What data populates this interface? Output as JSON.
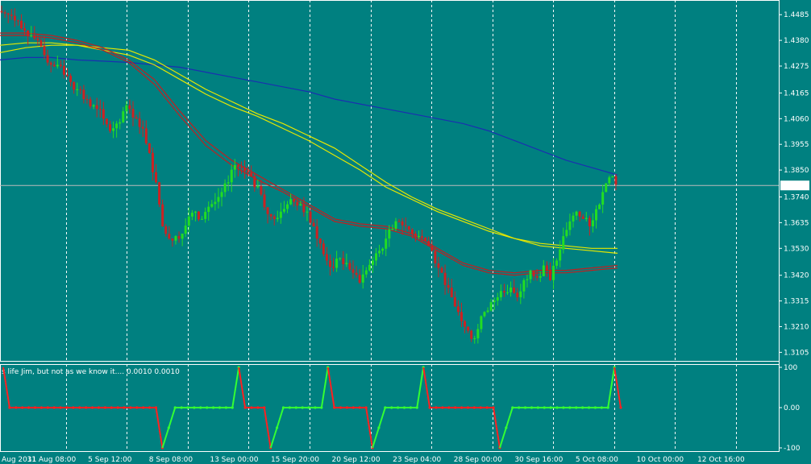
{
  "colors": {
    "background": "#008080",
    "bull_candle": "#22dd22",
    "bear_candle": "#cc2222",
    "grid": "#ffffff",
    "ma_blue": "#1a2fb0",
    "ma_yellow": "#e8e800",
    "ma_red": "#c02020",
    "ind_red": "#ff2020",
    "ind_green": "#33ff33"
  },
  "chart_data": [
    {
      "type": "candlestick",
      "symbol": "",
      "price_ticks": [
        "1.4485",
        "1.4380",
        "1.4275",
        "1.4165",
        "1.4060",
        "1.3955",
        "1.3850",
        "1.3740",
        "1.3635",
        "1.3530",
        "1.3420",
        "1.3315",
        "1.3210",
        "1.3105"
      ],
      "current_price": "1.3787",
      "ylim": [
        1.307,
        1.4545
      ],
      "time_labels": [
        "Aug 2011",
        "31 Aug 08:00",
        "5 Sep 12:00",
        "8 Sep 08:00",
        "13 Sep 00:00",
        "15 Sep 20:00",
        "20 Sep 12:00",
        "23 Sep 04:00",
        "28 Sep 00:00",
        "30 Sep 16:00",
        "5 Oct 08:00",
        "10 Oct 00:00",
        "12 Oct 16:00"
      ],
      "close_path": [
        1.449,
        1.448,
        1.446,
        1.442,
        1.44,
        1.438,
        1.432,
        1.428,
        1.428,
        1.424,
        1.421,
        1.418,
        1.414,
        1.411,
        1.41,
        1.406,
        1.401,
        1.404,
        1.409,
        1.41,
        1.406,
        1.402,
        1.392,
        1.38,
        1.362,
        1.357,
        1.358,
        1.359,
        1.366,
        1.368,
        1.365,
        1.37,
        1.372,
        1.376,
        1.38,
        1.387,
        1.386,
        1.384,
        1.378,
        1.375,
        1.367,
        1.365,
        1.368,
        1.371,
        1.372,
        1.371,
        1.368,
        1.362,
        1.355,
        1.348,
        1.345,
        1.349,
        1.347,
        1.343,
        1.339,
        1.344,
        1.348,
        1.352,
        1.357,
        1.361,
        1.364,
        1.362,
        1.359,
        1.358,
        1.356,
        1.352,
        1.345,
        1.338,
        1.333,
        1.327,
        1.321,
        1.316,
        1.32,
        1.327,
        1.331,
        1.333,
        1.335,
        1.337,
        1.333,
        1.34,
        1.344,
        1.341,
        1.346,
        1.34,
        1.348,
        1.358,
        1.364,
        1.368,
        1.365,
        1.362,
        1.369,
        1.376,
        1.382,
        1.379
      ],
      "moving_averages": [
        {
          "color_key": "ma_blue",
          "values": [
            1.43,
            1.431,
            1.431,
            1.43,
            1.4295,
            1.429,
            1.428,
            1.427,
            1.425,
            1.423,
            1.421,
            1.419,
            1.417,
            1.414,
            1.412,
            1.41,
            1.408,
            1.406,
            1.404,
            1.401,
            1.397,
            1.393,
            1.389,
            1.386,
            1.383
          ]
        },
        {
          "color_key": "ma_yellow",
          "values": [
            1.433,
            1.435,
            1.436,
            1.436,
            1.435,
            1.434,
            1.43,
            1.424,
            1.418,
            1.413,
            1.408,
            1.404,
            1.399,
            1.394,
            1.387,
            1.38,
            1.374,
            1.369,
            1.365,
            1.361,
            1.357,
            1.354,
            1.353,
            1.352,
            1.351
          ]
        },
        {
          "color_key": "ma_yellow",
          "values": [
            1.436,
            1.437,
            1.437,
            1.436,
            1.434,
            1.432,
            1.428,
            1.422,
            1.416,
            1.411,
            1.407,
            1.402,
            1.397,
            1.391,
            1.385,
            1.378,
            1.373,
            1.368,
            1.364,
            1.36,
            1.357,
            1.355,
            1.354,
            1.353,
            1.353
          ]
        },
        {
          "color_key": "ma_red",
          "values": [
            1.44,
            1.44,
            1.439,
            1.437,
            1.434,
            1.429,
            1.42,
            1.407,
            1.395,
            1.387,
            1.381,
            1.376,
            1.37,
            1.364,
            1.362,
            1.361,
            1.358,
            1.352,
            1.346,
            1.343,
            1.342,
            1.343,
            1.343,
            1.344,
            1.345
          ]
        },
        {
          "color_key": "ma_red",
          "values": [
            1.441,
            1.441,
            1.44,
            1.438,
            1.435,
            1.43,
            1.422,
            1.409,
            1.397,
            1.389,
            1.383,
            1.377,
            1.371,
            1.365,
            1.363,
            1.362,
            1.359,
            1.353,
            1.347,
            1.344,
            1.343,
            1.344,
            1.344,
            1.345,
            1.346
          ]
        }
      ]
    },
    {
      "type": "line",
      "indicator_label": "s life Jim, but not as we know it....",
      "indicator_params": "0.0010 0.0010",
      "y_ticks": [
        "100",
        "0.00",
        "-100"
      ],
      "ylim": [
        -108,
        108
      ],
      "values": [
        100,
        0,
        0,
        0,
        0,
        0,
        0,
        0,
        0,
        0,
        0,
        0,
        0,
        0,
        0,
        0,
        0,
        0,
        0,
        0,
        0,
        0,
        0,
        0,
        0,
        -100,
        -50,
        0,
        0,
        0,
        0,
        0,
        0,
        0,
        0,
        0,
        0,
        100,
        0,
        0,
        0,
        0,
        -100,
        -50,
        0,
        0,
        0,
        0,
        0,
        0,
        0,
        100,
        0,
        0,
        0,
        0,
        0,
        0,
        -100,
        -50,
        0,
        0,
        0,
        0,
        0,
        0,
        100,
        0,
        0,
        0,
        0,
        0,
        0,
        0,
        0,
        0,
        0,
        0,
        -100,
        -50,
        0,
        0,
        0,
        0,
        0,
        0,
        0,
        0,
        0,
        0,
        0,
        0,
        0,
        0,
        0,
        0,
        100,
        0
      ]
    }
  ]
}
